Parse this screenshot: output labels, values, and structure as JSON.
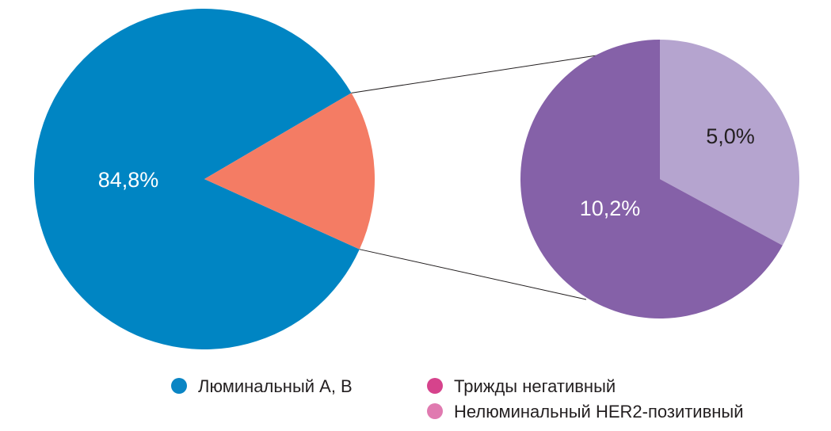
{
  "chart_data": {
    "type": "pie",
    "subtype": "pie-of-pie",
    "main_pie": {
      "slices": [
        {
          "label": "84,8%",
          "value": 84.8,
          "color": "#0085c3",
          "label_color": "#ffffff"
        },
        {
          "label": "",
          "value": 15.2,
          "color": "#f47c64"
        }
      ]
    },
    "secondary_pie": {
      "slices": [
        {
          "label": "5,0%",
          "value": 5.0,
          "color": "#b5a4cf",
          "label_color": "#231f20"
        },
        {
          "label": "10,2%",
          "value": 10.2,
          "color": "#8561a8",
          "label_color": "#ffffff"
        }
      ]
    },
    "legend": {
      "placement": "bottom",
      "items": [
        {
          "label": "Люминальный А, В",
          "color": "#0a85c4"
        },
        {
          "label": "Трижды негативный",
          "color": "#d6438c"
        },
        {
          "label": "Нелюминальный HER2-позитивный",
          "color": "#e07ab0"
        }
      ]
    }
  }
}
